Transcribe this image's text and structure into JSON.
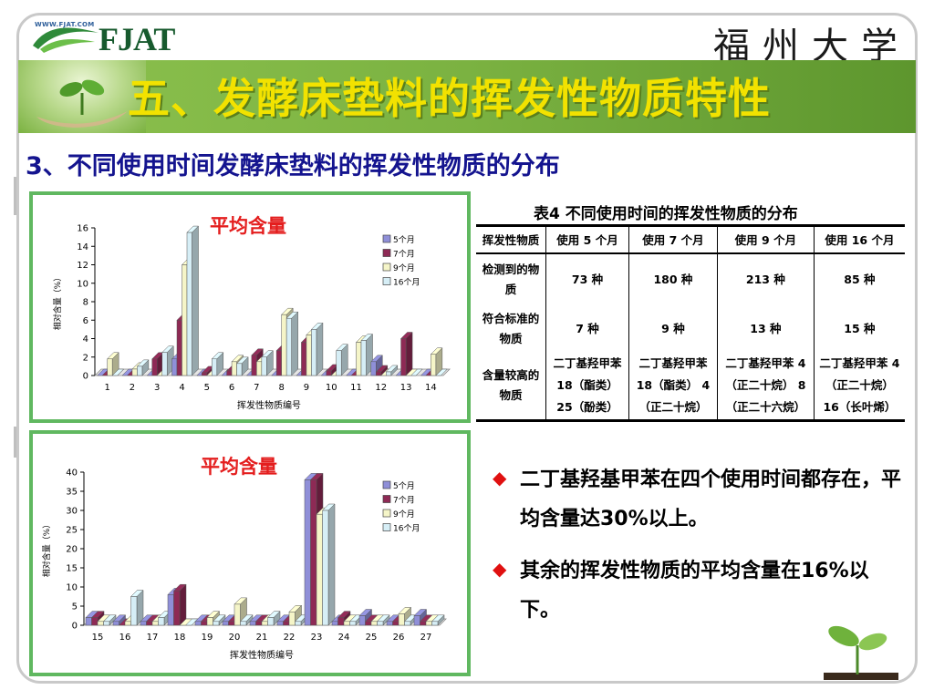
{
  "header": {
    "logo_url_text": "WWW.FJAT.COM",
    "logo_text": "FJAT",
    "university_name": "福州大学",
    "title": "五、发酵床垫料的挥发性物质特性"
  },
  "subtitle": "3、不同使用时间发酵床垫料的挥发性物质的分布",
  "chart_data": [
    {
      "type": "bar",
      "title": "平均含量",
      "xlabel": "挥发性物质编号",
      "ylabel": "相对含量（%）",
      "ylim": [
        0,
        16
      ],
      "yticks": [
        0,
        2,
        4,
        6,
        8,
        10,
        12,
        14,
        16
      ],
      "categories": [
        "1",
        "2",
        "3",
        "4",
        "5",
        "6",
        "7",
        "8",
        "9",
        "10",
        "11",
        "12",
        "13",
        "14"
      ],
      "legend_position": "top-right",
      "grid": false,
      "series": [
        {
          "name": "5个月",
          "color": "#8f8fd8",
          "values": [
            0,
            0,
            0,
            1.8,
            0,
            0,
            0,
            0,
            0,
            0,
            0,
            1.5,
            0,
            0
          ]
        },
        {
          "name": "7个月",
          "color": "#8e2a55",
          "values": [
            0,
            0,
            1.8,
            6,
            0.3,
            0.5,
            2.2,
            2.7,
            3.6,
            0.5,
            0,
            0.4,
            4,
            0
          ]
        },
        {
          "name": "9个月",
          "color": "#f5f5c8",
          "values": [
            1.8,
            0.7,
            0,
            12,
            0,
            1.5,
            1.5,
            6.6,
            4.4,
            0,
            3.6,
            0,
            0,
            2.3
          ]
        },
        {
          "name": "16个月",
          "color": "#d6eef6",
          "values": [
            0,
            1,
            2.5,
            15.5,
            1.8,
            1.3,
            2,
            6.2,
            5,
            2.7,
            3.8,
            0.4,
            0,
            0
          ]
        }
      ]
    },
    {
      "type": "bar",
      "title": "平均含量",
      "xlabel": "挥发性物质编号",
      "ylabel": "相对含量（%）",
      "ylim": [
        0,
        40
      ],
      "yticks": [
        0,
        5,
        10,
        15,
        20,
        25,
        30,
        35,
        40
      ],
      "categories": [
        "15",
        "16",
        "17",
        "18",
        "19",
        "20",
        "21",
        "22",
        "23",
        "24",
        "25",
        "26",
        "27"
      ],
      "legend_position": "top-right",
      "grid": false,
      "series": [
        {
          "name": "5个月",
          "color": "#8f8fd8",
          "values": [
            2,
            1,
            1,
            8,
            1,
            1,
            1,
            1,
            38,
            1,
            2.5,
            1,
            2.5
          ]
        },
        {
          "name": "7个月",
          "color": "#8e2a55",
          "values": [
            2,
            0,
            1,
            9,
            1,
            1,
            1,
            1,
            38,
            2,
            1,
            1,
            1
          ]
        },
        {
          "name": "9个月",
          "color": "#f5f5c8",
          "values": [
            1,
            1,
            1,
            0,
            2,
            5.5,
            1,
            3.5,
            29,
            1,
            1,
            3,
            1
          ]
        },
        {
          "name": "16个月",
          "color": "#d6eef6",
          "values": [
            1,
            7.5,
            2,
            0,
            1,
            1,
            2,
            1,
            30,
            1,
            1,
            1,
            1
          ]
        }
      ]
    }
  ],
  "table": {
    "caption": "表4  不同使用时间的挥发性物质的分布",
    "headers": [
      "挥发性物质",
      "使用 5 个月",
      "使用 7 个月",
      "使用 9 个月",
      "使用 16 个月"
    ],
    "rows": [
      {
        "label": "检测到的物质",
        "cells": [
          "73 种",
          "180 种",
          "213 种",
          "85 种"
        ]
      },
      {
        "label": "符合标准的物质",
        "cells": [
          "7 种",
          "9 种",
          "13 种",
          "15 种"
        ]
      },
      {
        "label": "含量较高的物质",
        "cells": [
          "二丁基羟甲苯 18（酯类） 25（酚类）",
          "二丁基羟甲苯 18（酯类） 4（正二十烷）",
          "二丁基羟甲苯 4（正二十烷） 8（正二十六烷）",
          "二丁基羟甲苯 4（正二十烷） 16（长叶烯）"
        ]
      }
    ]
  },
  "bullets": [
    "二丁基羟基甲苯在四个使用时间都存在，平均含量达30%以上。",
    "其余的挥发性物质的平均含量在16%以下。"
  ],
  "colors": {
    "banner": "#7bb241",
    "title": "#f2e200",
    "subtitle": "#14148f",
    "panel_border": "#60b860",
    "chart_title": "#e41e1e",
    "bullet": "#e01010"
  }
}
